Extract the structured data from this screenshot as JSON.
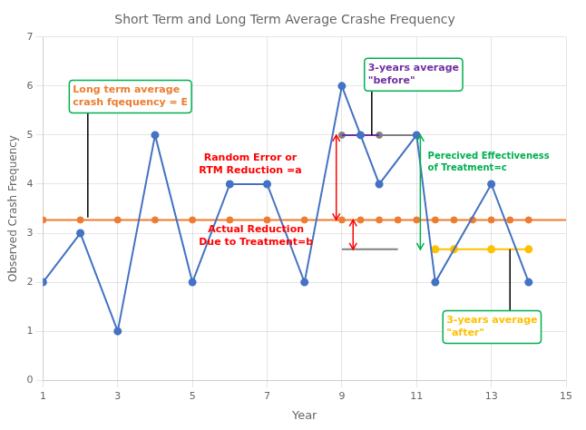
{
  "chart_data": {
    "type": "line",
    "title": "Short Term and Long Term Average Crashe Frequency",
    "xlabel": "Year",
    "ylabel": "Observed Crash Frequency",
    "xlim": [
      1,
      15
    ],
    "ylim": [
      0,
      7
    ],
    "xticks": [
      1,
      3,
      5,
      7,
      9,
      11,
      13,
      15
    ],
    "yticks": [
      0,
      1,
      2,
      3,
      4,
      5,
      6,
      7
    ],
    "grid": true,
    "series": [
      {
        "type": "line",
        "color": "#4472C4",
        "marker": "circle",
        "x": [
          1,
          2,
          3,
          4,
          5,
          6,
          7,
          8,
          9,
          9.5,
          10,
          11,
          11.5,
          13,
          14
        ],
        "values": [
          2.0,
          3.0,
          1.0,
          5.0,
          2.0,
          4.0,
          4.0,
          2.0,
          6.0,
          5.0,
          4.0,
          5.0,
          2.0,
          4.0,
          2.0
        ]
      },
      {
        "type": "hline",
        "color": "#ED7D31",
        "marker": "circle",
        "x": [
          1,
          2,
          3,
          4,
          5,
          6,
          7,
          8,
          9,
          9.5,
          10,
          10.5,
          11,
          11.5,
          12,
          12.5,
          13,
          13.5,
          14
        ],
        "values": [
          3.27,
          3.27,
          3.27,
          3.27,
          3.27,
          3.27,
          3.27,
          3.27,
          3.27,
          3.27,
          3.27,
          3.27,
          3.27,
          3.27,
          3.27,
          3.27,
          3.27,
          3.27,
          3.27
        ]
      },
      {
        "type": "line",
        "color": "#7030A0",
        "marker": "none",
        "x": [
          9.0,
          9.5,
          10.0
        ],
        "values": [
          5.0,
          5.0,
          5.0
        ]
      },
      {
        "type": "scatter",
        "color": "#808080",
        "marker": "circle",
        "x": [
          9.0,
          9.5,
          10.0
        ],
        "values": [
          5.0,
          5.0,
          5.0
        ]
      },
      {
        "type": "line",
        "color": "#808080",
        "marker": "none",
        "x": [
          10.0,
          11.0
        ],
        "values": [
          5.0,
          5.0
        ]
      },
      {
        "type": "line",
        "color": "#FFC000",
        "marker": "circle",
        "x": [
          11.5,
          12.0,
          13.0,
          14.0
        ],
        "values": [
          2.67,
          2.67,
          2.67,
          2.67
        ]
      },
      {
        "type": "line",
        "color": "#808080",
        "marker": "none",
        "x": [
          9.0,
          10.5
        ],
        "values": [
          2.67,
          2.67
        ]
      }
    ],
    "arrows": [
      {
        "x": 8.85,
        "from": 3.27,
        "to": 5.0,
        "color": "#FF0000"
      },
      {
        "x": 9.3,
        "from": 2.67,
        "to": 3.27,
        "color": "#FF0000"
      },
      {
        "x": 11.1,
        "from": 2.67,
        "to": 5.0,
        "color": "#00B050"
      }
    ],
    "annotations": [
      {
        "text": "Long term average\ncrash fqequency = E",
        "x": 1.8,
        "y": 5.85,
        "color": "#ED7D31",
        "box_color": "#00B050",
        "point": [
          2.2,
          3.32
        ],
        "point_color": "#000000"
      },
      {
        "text": "3-years average\n\"before\"",
        "x": 9.7,
        "y": 6.3,
        "color": "#7030A0",
        "box_color": "#00B050",
        "point": [
          9.8,
          5.0
        ],
        "point_color": "#000000"
      },
      {
        "text": "Random Error or\nRTM Reduction =a",
        "x": 6.55,
        "y": 4.4,
        "color": "#FF0000"
      },
      {
        "text": "Actual Reduction\nDue to Treatment=b",
        "x": 6.7,
        "y": 2.95,
        "color": "#FF0000"
      },
      {
        "text": "Perecived Effectiveness\nof Treatment=c",
        "x": 11.3,
        "y": 4.45,
        "color": "#00B050"
      },
      {
        "text": "3-years average\n\"after\"",
        "x": 11.8,
        "y": 1.15,
        "color": "#FFC000",
        "box_color": "#00B050",
        "point": [
          13.5,
          2.67
        ],
        "point_color": "#000000"
      }
    ]
  }
}
